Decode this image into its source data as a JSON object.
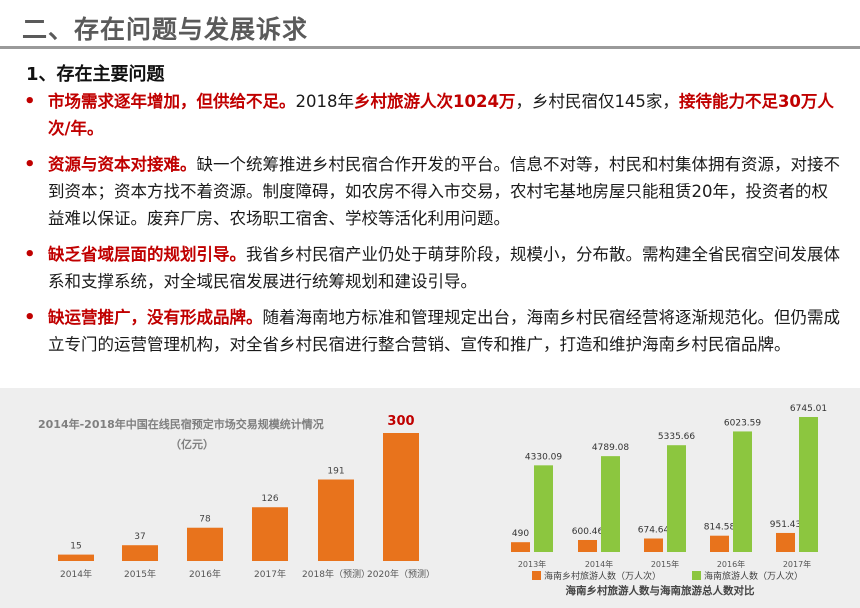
{
  "header": {
    "title": "二、存在问题与发展诉求"
  },
  "section": {
    "title": "1、存在主要问题"
  },
  "bullets": [
    {
      "parts": [
        {
          "text": "市场需求逐年增加，但供给不足。",
          "red": true
        },
        {
          "text": "2018年",
          "red": false
        },
        {
          "text": "乡村旅游人次1024万",
          "red": true
        },
        {
          "text": "，乡村民宿仅145家，",
          "red": false
        },
        {
          "text": "接待能力不足30万人次/年。",
          "red": true
        }
      ]
    },
    {
      "parts": [
        {
          "text": "资源与资本对接难。",
          "red": true
        },
        {
          "text": "缺一个统筹推进乡村民宿合作开发的平台。信息不对等，村民和村集体拥有资源，对接不到资本；资本方找不着资源。制度障碍，如农房不得入市交易，农村宅基地房屋只能租赁20年，投资者的权益难以保证。废弃厂房、农场职工宿舍、学校等活化利用问题。",
          "red": false
        }
      ]
    },
    {
      "parts": [
        {
          "text": "缺乏省域层面的规划引导。",
          "red": true
        },
        {
          "text": "我省乡村民宿产业仍处于萌芽阶段，规模小，分布散。需构建全省民宿空间发展体系和支撑系统，对全域民宿发展进行统筹规划和建设引导。",
          "red": false
        }
      ]
    },
    {
      "parts": [
        {
          "text": "缺运营推广，没有形成品牌。",
          "red": true
        },
        {
          "text": "随着海南地方标准和管理规定出台，海南乡村民宿经营将逐渐规范化。但仍需成立专门的运营管理机构，对全省乡村民宿进行整合营销、宣传和推广，打造和维护海南乡村民宿品牌。",
          "red": false
        }
      ]
    }
  ],
  "bullet_symbol": "•",
  "colors": {
    "accent_red": "#c00000",
    "bar_orange": "#e8731c",
    "bar_green": "#8cc63f",
    "panel_bg": "#eeeeee"
  },
  "chart_data": [
    {
      "type": "bar",
      "title": "2014年-2018年中国在线民宿预定市场交易规模统计情况",
      "subtitle": "（亿元）",
      "categories": [
        "2014年",
        "2015年",
        "2016年",
        "2017年",
        "2018年（预测）",
        "2020年（预测）"
      ],
      "values": [
        15,
        37,
        78,
        126,
        191,
        300
      ],
      "value_labels": [
        "15",
        "37",
        "78",
        "126",
        "191",
        "300"
      ],
      "highlight_index": 5,
      "ylim": [
        0,
        300
      ],
      "grid": false
    },
    {
      "type": "bar",
      "title": "海南乡村旅游人数与海南旅游总人数对比",
      "categories": [
        "2013年",
        "2014年",
        "2015年",
        "2016年",
        "2017年"
      ],
      "series": [
        {
          "name": "海南乡村旅游人数（万人次）",
          "values": [
            490,
            600.46,
            674.64,
            814.58,
            951.43
          ],
          "labels": [
            "490",
            "600.46",
            "674.64",
            "814.58",
            "951.43"
          ]
        },
        {
          "name": "海南旅游人数（万人次）",
          "values": [
            4330.09,
            4789.08,
            5335.66,
            6023.59,
            6745.01
          ],
          "labels": [
            "4330.09",
            "4789.08",
            "5335.66",
            "6023.59",
            "6745.01"
          ]
        }
      ],
      "ylim": [
        0,
        6745.01
      ],
      "legend": "bottom",
      "grid": false
    }
  ]
}
